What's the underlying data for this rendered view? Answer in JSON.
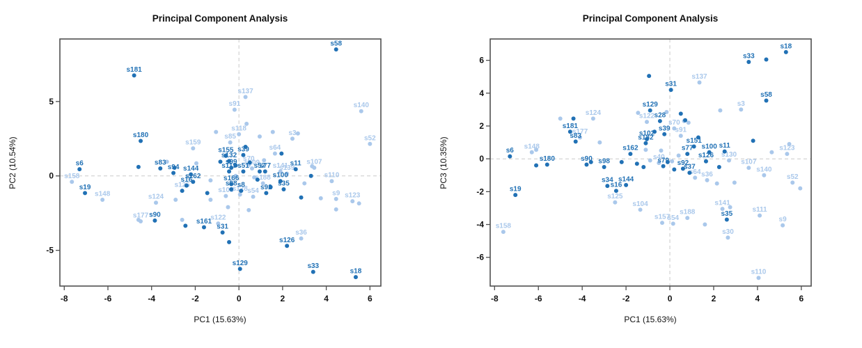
{
  "figure": {
    "kind": "pca-scatter-pair",
    "background": "#ffffff",
    "colors": {
      "dark_group": "#2171b5",
      "light_group": "#aac8eb",
      "zero_line": "#c9c9c9",
      "plot_border": "#4f4f4f",
      "text": "#111111"
    },
    "panel_count": 2
  },
  "chart_data": [
    {
      "type": "scatter",
      "title": "Principal Component Analysis",
      "xlabel": "PC1 (15.63%)",
      "ylabel": "PC2 (10.54%)",
      "xlim": [
        -8.2,
        6.5
      ],
      "ylim": [
        -7.4,
        9.2
      ],
      "xticks": [
        -8,
        -6,
        -4,
        -2,
        0,
        2,
        4,
        6
      ],
      "yticks": [
        5,
        0,
        -5
      ],
      "grid": "dashed lines at x=0 and y=0 only",
      "legend": "none",
      "point_groups": {
        "dark": "#2171b5",
        "light": "#aac8eb"
      },
      "points": [
        {
          "label": "s58",
          "x": 4.45,
          "y": 8.5,
          "group": "dark"
        },
        {
          "label": "s181",
          "x": -4.8,
          "y": 6.75,
          "group": "dark"
        },
        {
          "label": "s180",
          "x": -4.5,
          "y": 2.35,
          "group": "dark"
        },
        {
          "label": "s137",
          "x": 0.3,
          "y": 5.3,
          "group": "light"
        },
        {
          "label": "s91",
          "x": -0.2,
          "y": 4.45,
          "group": "light"
        },
        {
          "label": "s140",
          "x": 5.6,
          "y": 4.35,
          "group": "light"
        },
        {
          "label": "s52",
          "x": 6.0,
          "y": 2.15,
          "group": "light"
        },
        {
          "label": "s3",
          "x": 2.45,
          "y": 2.5,
          "group": "light"
        },
        {
          "label": "s118",
          "x": 0.0,
          "y": 2.8,
          "group": "light"
        },
        {
          "label": "s85",
          "x": -0.4,
          "y": 2.25,
          "group": "light"
        },
        {
          "label": "s159",
          "x": -2.1,
          "y": 1.85,
          "group": "light"
        },
        {
          "label": "s64",
          "x": 1.65,
          "y": 1.5,
          "group": "light"
        },
        {
          "label": "s155",
          "x": -0.6,
          "y": 1.35,
          "group": "dark"
        },
        {
          "label": "s132",
          "x": -0.45,
          "y": 1.0,
          "group": "dark"
        },
        {
          "label": "s99",
          "x": -0.35,
          "y": 0.55,
          "group": "dark"
        },
        {
          "label": "s39",
          "x": 0.2,
          "y": 1.4,
          "group": "dark"
        },
        {
          "label": "s70",
          "x": 0.45,
          "y": 0.75,
          "group": "light"
        },
        {
          "label": "s109",
          "x": 0.6,
          "y": 0.5,
          "group": "light"
        },
        {
          "label": "s144",
          "x": -2.2,
          "y": 0.1,
          "group": "dark"
        },
        {
          "label": "s162",
          "x": -2.1,
          "y": -0.4,
          "group": "dark"
        },
        {
          "label": "s16",
          "x": -2.4,
          "y": -0.65,
          "group": "dark"
        },
        {
          "label": "s125",
          "x": -2.6,
          "y": -1.0,
          "group": "light"
        },
        {
          "label": "s94",
          "x": -3.0,
          "y": 0.2,
          "group": "dark"
        },
        {
          "label": "s83",
          "x": -3.6,
          "y": 0.5,
          "group": "dark"
        },
        {
          "label": "s119",
          "x": -0.45,
          "y": 0.3,
          "group": "dark"
        },
        {
          "label": "s51",
          "x": 0.2,
          "y": 0.3,
          "group": "dark"
        },
        {
          "label": "s57",
          "x": 0.95,
          "y": 0.3,
          "group": "dark"
        },
        {
          "label": "s77",
          "x": 1.2,
          "y": 0.3,
          "group": "dark"
        },
        {
          "label": "s11",
          "x": 2.6,
          "y": 0.45,
          "group": "dark"
        },
        {
          "label": "s141",
          "x": 1.9,
          "y": 0.3,
          "group": "light"
        },
        {
          "label": "s139",
          "x": 2.2,
          "y": 0.15,
          "group": "light"
        },
        {
          "label": "s107",
          "x": 3.45,
          "y": 0.55,
          "group": "light"
        },
        {
          "label": "s110",
          "x": 4.25,
          "y": -0.35,
          "group": "light"
        },
        {
          "label": "s9",
          "x": 4.45,
          "y": -1.55,
          "group": "light"
        },
        {
          "label": "s123",
          "x": 5.2,
          "y": -1.7,
          "group": "light"
        },
        {
          "label": "s166",
          "x": -0.35,
          "y": -0.55,
          "group": "dark"
        },
        {
          "label": "s98",
          "x": -0.35,
          "y": -0.9,
          "group": "dark"
        },
        {
          "label": "s8",
          "x": 0.1,
          "y": -1.0,
          "group": "dark"
        },
        {
          "label": "s103",
          "x": -0.6,
          "y": -1.35,
          "group": "light"
        },
        {
          "label": "s128",
          "x": 0.05,
          "y": -1.25,
          "group": "light"
        },
        {
          "label": "s54",
          "x": 0.65,
          "y": -1.4,
          "group": "light"
        },
        {
          "label": "s92",
          "x": 1.25,
          "y": -1.15,
          "group": "dark"
        },
        {
          "label": "s188",
          "x": 1.1,
          "y": -0.5,
          "group": "light"
        },
        {
          "label": "s100",
          "x": 1.9,
          "y": -0.35,
          "group": "dark"
        },
        {
          "label": "s35",
          "x": 2.05,
          "y": -0.9,
          "group": "dark"
        },
        {
          "label": "s6",
          "x": -7.3,
          "y": 0.45,
          "group": "dark"
        },
        {
          "label": "s19",
          "x": -7.05,
          "y": -1.15,
          "group": "dark"
        },
        {
          "label": "s158",
          "x": -7.65,
          "y": -0.4,
          "group": "light"
        },
        {
          "label": "s148",
          "x": -6.25,
          "y": -1.6,
          "group": "light"
        },
        {
          "label": "s124",
          "x": -3.8,
          "y": -1.8,
          "group": "light"
        },
        {
          "label": "s177",
          "x": -4.5,
          "y": -3.05,
          "group": "light"
        },
        {
          "label": "s90",
          "x": -3.85,
          "y": -3.0,
          "group": "dark"
        },
        {
          "label": "s122",
          "x": -0.95,
          "y": -3.2,
          "group": "light"
        },
        {
          "label": "s161",
          "x": -1.6,
          "y": -3.45,
          "group": "dark"
        },
        {
          "label": "s31",
          "x": -0.75,
          "y": -3.8,
          "group": "dark"
        },
        {
          "label": "s36",
          "x": 2.85,
          "y": -4.2,
          "group": "light"
        },
        {
          "label": "s126",
          "x": 2.2,
          "y": -4.7,
          "group": "dark"
        },
        {
          "label": "s129",
          "x": 0.05,
          "y": -6.25,
          "group": "dark"
        },
        {
          "label": "s33",
          "x": 3.4,
          "y": -6.45,
          "group": "dark"
        },
        {
          "label": "s18",
          "x": 5.35,
          "y": -6.8,
          "group": "dark"
        }
      ],
      "unlabeled_points": {
        "light": [
          [
            -4.6,
            -2.95
          ],
          [
            -2.9,
            -1.6
          ],
          [
            -2.6,
            -2.95
          ],
          [
            -1.3,
            -0.3
          ],
          [
            -1.05,
            2.95
          ],
          [
            0.35,
            3.5
          ],
          [
            0.95,
            2.65
          ],
          [
            1.55,
            2.95
          ],
          [
            2.7,
            2.85
          ],
          [
            3.35,
            0.65
          ],
          [
            3.0,
            -0.5
          ],
          [
            3.75,
            -1.5
          ],
          [
            4.45,
            -2.25
          ],
          [
            5.5,
            -1.85
          ],
          [
            0.45,
            -2.3
          ],
          [
            -0.5,
            -2.1
          ],
          [
            -1.3,
            -1.6
          ],
          [
            -1.95,
            0.85
          ],
          [
            -3.3,
            0.95
          ],
          [
            1.15,
            1.05
          ],
          [
            -0.15,
            0.0
          ],
          [
            0.7,
            -0.1
          ]
        ],
        "dark": [
          [
            -4.6,
            0.6
          ],
          [
            -2.95,
            0.55
          ],
          [
            -2.6,
            -1.0
          ],
          [
            -1.45,
            -1.15
          ],
          [
            -0.85,
            0.95
          ],
          [
            -0.15,
            0.7
          ],
          [
            0.5,
            0.9
          ],
          [
            0.3,
            1.95
          ],
          [
            0.85,
            -0.25
          ],
          [
            1.45,
            -0.75
          ],
          [
            1.95,
            1.5
          ],
          [
            2.85,
            -1.45
          ],
          [
            3.3,
            0.0
          ],
          [
            -0.45,
            -4.45
          ],
          [
            -2.45,
            -3.35
          ]
        ]
      }
    },
    {
      "type": "scatter",
      "title": "Principal Component Analysis",
      "xlabel": "PC1 (15.63%)",
      "ylabel": "PC3 (10.35%)",
      "xlim": [
        -8.2,
        6.45
      ],
      "ylim": [
        -7.75,
        7.3
      ],
      "xticks": [
        -8,
        -6,
        -4,
        -2,
        0,
        2,
        4,
        6
      ],
      "yticks": [
        6,
        4,
        2,
        0,
        -2,
        -4,
        -6
      ],
      "grid": "dashed lines at x=0 and y=0 only",
      "legend": "none",
      "point_groups": {
        "dark": "#2171b5",
        "light": "#aac8eb"
      },
      "points": [
        {
          "label": "s18",
          "x": 5.3,
          "y": 6.5,
          "group": "dark"
        },
        {
          "label": "s33",
          "x": 3.6,
          "y": 5.9,
          "group": "dark"
        },
        {
          "label": "s58",
          "x": 4.4,
          "y": 3.55,
          "group": "dark"
        },
        {
          "label": "s31",
          "x": 0.05,
          "y": 4.2,
          "group": "dark"
        },
        {
          "label": "s137",
          "x": 1.35,
          "y": 4.65,
          "group": "light"
        },
        {
          "label": "s129",
          "x": -0.9,
          "y": 2.95,
          "group": "dark"
        },
        {
          "label": "s3",
          "x": 3.25,
          "y": 3.0,
          "group": "light"
        },
        {
          "label": "s28",
          "x": -0.45,
          "y": 2.3,
          "group": "dark"
        },
        {
          "label": "s122",
          "x": -1.05,
          "y": 2.25,
          "group": "light"
        },
        {
          "label": "s124",
          "x": -3.5,
          "y": 2.45,
          "group": "light"
        },
        {
          "label": "s181",
          "x": -4.55,
          "y": 1.65,
          "group": "dark"
        },
        {
          "label": "s177",
          "x": -4.1,
          "y": 1.3,
          "group": "light"
        },
        {
          "label": "s83",
          "x": -4.3,
          "y": 1.05,
          "group": "dark"
        },
        {
          "label": "s70",
          "x": 0.2,
          "y": 1.85,
          "group": "light"
        },
        {
          "label": "s39",
          "x": -0.25,
          "y": 1.5,
          "group": "dark"
        },
        {
          "label": "s91",
          "x": 0.5,
          "y": 1.4,
          "group": "light"
        },
        {
          "label": "s102",
          "x": -1.05,
          "y": 1.2,
          "group": "dark"
        },
        {
          "label": "s182",
          "x": -1.1,
          "y": 0.95,
          "group": "dark"
        },
        {
          "label": "s151",
          "x": 1.1,
          "y": 0.75,
          "group": "dark"
        },
        {
          "label": "s77",
          "x": 0.8,
          "y": 0.3,
          "group": "dark"
        },
        {
          "label": "s100",
          "x": 1.8,
          "y": 0.4,
          "group": "dark"
        },
        {
          "label": "s11",
          "x": 2.5,
          "y": 0.45,
          "group": "dark"
        },
        {
          "label": "s126",
          "x": 1.65,
          "y": -0.15,
          "group": "dark"
        },
        {
          "label": "s123",
          "x": 5.35,
          "y": 0.3,
          "group": "light"
        },
        {
          "label": "s130",
          "x": 2.7,
          "y": -0.1,
          "group": "light"
        },
        {
          "label": "s107",
          "x": 3.6,
          "y": -0.55,
          "group": "light"
        },
        {
          "label": "s162",
          "x": -1.8,
          "y": 0.3,
          "group": "dark"
        },
        {
          "label": "s90",
          "x": -3.8,
          "y": -0.35,
          "group": "dark"
        },
        {
          "label": "s98",
          "x": -3.0,
          "y": -0.5,
          "group": "dark"
        },
        {
          "label": "s180",
          "x": -5.6,
          "y": -0.35,
          "group": "dark"
        },
        {
          "label": "s148",
          "x": -6.3,
          "y": 0.4,
          "group": "light"
        },
        {
          "label": "s6",
          "x": -7.3,
          "y": 0.15,
          "group": "dark"
        },
        {
          "label": "s19",
          "x": -7.05,
          "y": -2.2,
          "group": "dark"
        },
        {
          "label": "s34",
          "x": -2.85,
          "y": -1.65,
          "group": "dark"
        },
        {
          "label": "s16",
          "x": -2.45,
          "y": -1.95,
          "group": "dark"
        },
        {
          "label": "s144",
          "x": -2.0,
          "y": -1.6,
          "group": "dark"
        },
        {
          "label": "s125",
          "x": -2.5,
          "y": -2.65,
          "group": "light"
        },
        {
          "label": "s104",
          "x": -1.35,
          "y": -3.1,
          "group": "light"
        },
        {
          "label": "s157",
          "x": -0.35,
          "y": -3.9,
          "group": "light"
        },
        {
          "label": "s54",
          "x": 0.15,
          "y": -3.95,
          "group": "light"
        },
        {
          "label": "s188",
          "x": 0.8,
          "y": -3.6,
          "group": "light"
        },
        {
          "label": "s141",
          "x": 2.4,
          "y": -3.05,
          "group": "light"
        },
        {
          "label": "s35",
          "x": 2.6,
          "y": -3.7,
          "group": "dark"
        },
        {
          "label": "s111",
          "x": 4.1,
          "y": -3.45,
          "group": "light"
        },
        {
          "label": "s9",
          "x": 5.15,
          "y": -4.05,
          "group": "light"
        },
        {
          "label": "s30",
          "x": 2.65,
          "y": -4.8,
          "group": "light"
        },
        {
          "label": "s158",
          "x": -7.6,
          "y": -4.45,
          "group": "light"
        },
        {
          "label": "s110",
          "x": 4.05,
          "y": -7.25,
          "group": "light"
        },
        {
          "label": "s140",
          "x": 4.3,
          "y": -1.0,
          "group": "light"
        },
        {
          "label": "s52",
          "x": 5.6,
          "y": -1.45,
          "group": "light"
        },
        {
          "label": "s64",
          "x": 1.15,
          "y": -1.15,
          "group": "light"
        },
        {
          "label": "s36",
          "x": 1.7,
          "y": -1.3,
          "group": "light"
        },
        {
          "label": "s92",
          "x": 0.6,
          "y": -0.6,
          "group": "dark"
        },
        {
          "label": "s37",
          "x": 0.9,
          "y": -0.85,
          "group": "dark"
        },
        {
          "label": "s79",
          "x": -0.3,
          "y": -0.45,
          "group": "dark"
        },
        {
          "label": "s40",
          "x": -0.5,
          "y": -0.25,
          "group": "light"
        }
      ],
      "unlabeled_points": {
        "light": [
          [
            -6.1,
            0.55
          ],
          [
            -5.0,
            2.45
          ],
          [
            -3.2,
            1.0
          ],
          [
            -1.45,
            2.8
          ],
          [
            -0.15,
            2.85
          ],
          [
            0.65,
            2.3
          ],
          [
            0.85,
            2.2
          ],
          [
            2.3,
            2.95
          ],
          [
            -1.1,
            0.55
          ],
          [
            -0.4,
            0.5
          ],
          [
            0.4,
            0.2
          ],
          [
            2.15,
            -1.5
          ],
          [
            2.95,
            -1.45
          ],
          [
            4.65,
            0.4
          ],
          [
            5.45,
            0.9
          ],
          [
            5.95,
            -1.8
          ],
          [
            1.6,
            -4.0
          ],
          [
            2.75,
            -2.95
          ],
          [
            0.1,
            -0.15
          ],
          [
            -0.9,
            -0.1
          ]
        ],
        "dark": [
          [
            -0.95,
            5.05
          ],
          [
            0.7,
            2.35
          ],
          [
            3.8,
            1.1
          ],
          [
            -6.1,
            -0.4
          ],
          [
            -4.4,
            2.45
          ],
          [
            -3.6,
            -0.2
          ],
          [
            -1.5,
            -0.3
          ],
          [
            -1.2,
            -0.5
          ],
          [
            -0.7,
            1.65
          ],
          [
            0.5,
            2.75
          ],
          [
            0.2,
            -0.65
          ],
          [
            2.25,
            -0.5
          ],
          [
            4.4,
            6.05
          ],
          [
            -0.1,
            -0.2
          ],
          [
            1.3,
            1.3
          ],
          [
            -2.2,
            -0.2
          ]
        ]
      }
    }
  ]
}
